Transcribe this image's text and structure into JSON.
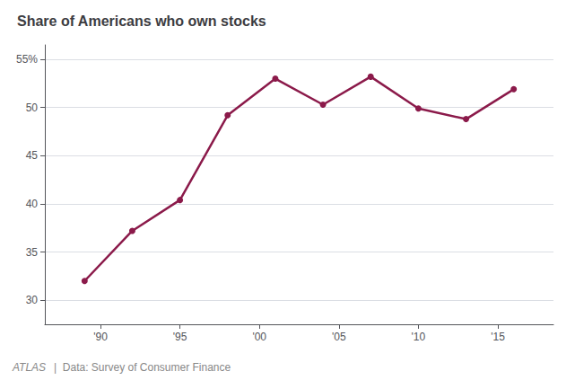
{
  "chart_data": {
    "type": "line",
    "title": "Share of Americans who own stocks",
    "x": [
      1989,
      1992,
      1995,
      1998,
      2001,
      2004,
      2007,
      2010,
      2013,
      2016
    ],
    "values": [
      32.0,
      37.2,
      40.4,
      49.2,
      53.0,
      50.3,
      53.2,
      49.9,
      48.8,
      51.9
    ],
    "color": "#8B1A4A",
    "marker": "circle",
    "xlim": [
      1986.5,
      2018.5
    ],
    "xticks": [
      {
        "value": 1990,
        "label": "'90"
      },
      {
        "value": 1995,
        "label": "'95"
      },
      {
        "value": 2000,
        "label": "'00"
      },
      {
        "value": 2005,
        "label": "'05"
      },
      {
        "value": 2010,
        "label": "'10"
      },
      {
        "value": 2015,
        "label": "'15"
      }
    ],
    "ylim": [
      27.5,
      56.5
    ],
    "yticks": [
      30,
      35,
      40,
      45,
      50,
      {
        "value": 55,
        "label": "55%"
      }
    ],
    "grid": true,
    "annotations": [
      "ATLAS",
      "|  Data: Survey of Consumer Finance"
    ]
  }
}
